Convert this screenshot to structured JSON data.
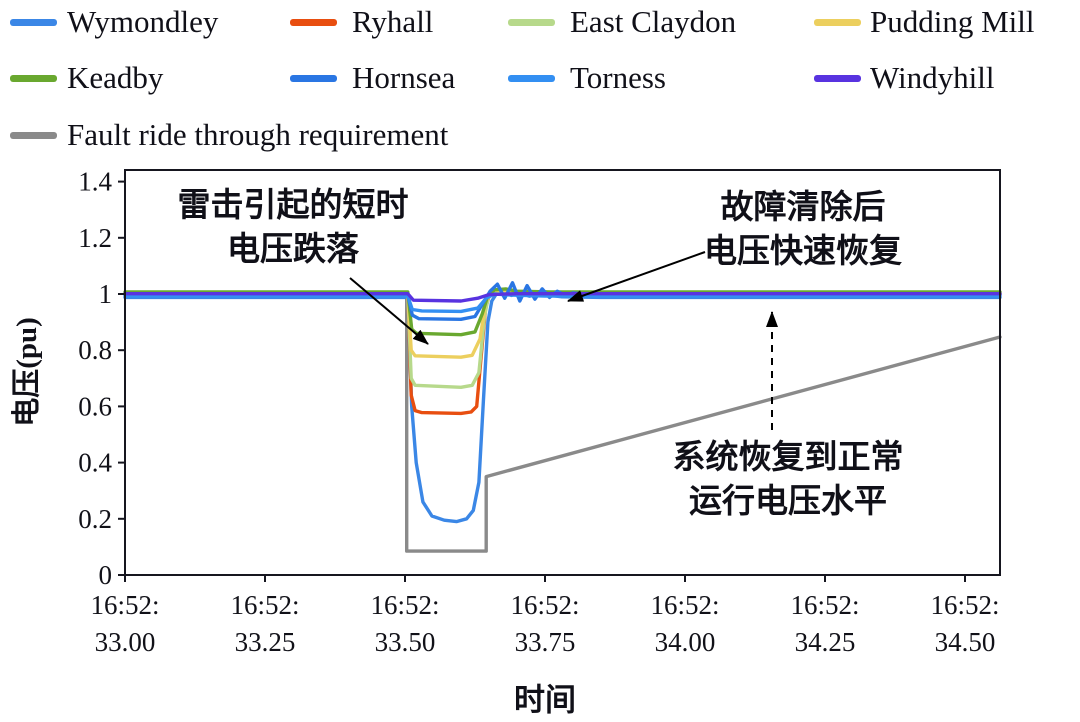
{
  "legend": {
    "items": [
      {
        "label": "Wymondley",
        "color": "#3b87e6"
      },
      {
        "label": "Ryhall",
        "color": "#e84e10"
      },
      {
        "label": "East Claydon",
        "color": "#b7d98b"
      },
      {
        "label": "Pudding Mill",
        "color": "#eccf5e"
      },
      {
        "label": "Keadby",
        "color": "#69a82f"
      },
      {
        "label": "Hornsea",
        "color": "#2a76e3"
      },
      {
        "label": "Torness",
        "color": "#338ff2"
      },
      {
        "label": "Windyhill",
        "color": "#5833e0"
      },
      {
        "label": "Fault ride through requirement",
        "color": "#8a8a8a"
      }
    ]
  },
  "axes": {
    "x_label": "时间",
    "y_label": "电压(pu)",
    "x_ticks": [
      {
        "t": 33.0,
        "label_top": "16:52:",
        "label_bottom": "33.00"
      },
      {
        "t": 33.25,
        "label_top": "16:52:",
        "label_bottom": "33.25"
      },
      {
        "t": 33.5,
        "label_top": "16:52:",
        "label_bottom": "33.50"
      },
      {
        "t": 33.75,
        "label_top": "16:52:",
        "label_bottom": "33.75"
      },
      {
        "t": 34.0,
        "label_top": "16:52:",
        "label_bottom": "34.00"
      },
      {
        "t": 34.25,
        "label_top": "16:52:",
        "label_bottom": "34.25"
      },
      {
        "t": 34.5,
        "label_top": "16:52:",
        "label_bottom": "34.50"
      }
    ],
    "y_ticks": [
      {
        "v": 0.0,
        "label": "0"
      },
      {
        "v": 0.2,
        "label": "0.2"
      },
      {
        "v": 0.4,
        "label": "0.4"
      },
      {
        "v": 0.6,
        "label": "0.6"
      },
      {
        "v": 0.8,
        "label": "0.8"
      },
      {
        "v": 1.0,
        "label": "1"
      },
      {
        "v": 1.2,
        "label": "1.2"
      },
      {
        "v": 1.4,
        "label": "1.4"
      }
    ]
  },
  "annotations": [
    {
      "lines": [
        "雷击引起的短时",
        "电压跌落"
      ]
    },
    {
      "lines": [
        "故障清除后",
        "电压快速恢复"
      ]
    },
    {
      "lines": [
        "系统恢复到正常",
        "运行电压水平"
      ]
    }
  ],
  "chart_data": {
    "type": "line",
    "title": "",
    "xlabel": "时间",
    "ylabel": "电压(pu)",
    "xlim": [
      33.0,
      34.5625
    ],
    "ylim": [
      0,
      1.4
    ],
    "grid": false,
    "legend_position": "top",
    "x_unit": "hh:mm:ss at 16:52 (seconds shown on ticks)",
    "series": [
      {
        "name": "Fault ride through requirement",
        "color": "#8a8a8a",
        "points": [
          [
            33.0,
            1.0
          ],
          [
            33.503,
            1.0
          ],
          [
            33.503,
            0.085
          ],
          [
            33.645,
            0.085
          ],
          [
            33.645,
            0.35
          ],
          [
            34.5625,
            0.847
          ]
        ]
      },
      {
        "name": "Wymondley",
        "color": "#3b87e6",
        "points": [
          [
            33.0,
            0.988
          ],
          [
            33.505,
            0.988
          ],
          [
            33.512,
            0.6
          ],
          [
            33.52,
            0.4
          ],
          [
            33.532,
            0.26
          ],
          [
            33.548,
            0.21
          ],
          [
            33.57,
            0.195
          ],
          [
            33.592,
            0.19
          ],
          [
            33.61,
            0.2
          ],
          [
            33.622,
            0.23
          ],
          [
            33.632,
            0.33
          ],
          [
            33.64,
            0.62
          ],
          [
            33.648,
            0.9
          ],
          [
            33.655,
            0.975
          ],
          [
            33.663,
            1.0
          ],
          [
            33.676,
            1.012
          ],
          [
            33.69,
            0.995
          ],
          [
            33.705,
            1.005
          ],
          [
            33.722,
            0.992
          ],
          [
            33.74,
            1.0
          ],
          [
            33.78,
            0.99
          ],
          [
            33.85,
            0.988
          ],
          [
            34.5625,
            0.988
          ]
        ]
      },
      {
        "name": "Ryhall",
        "color": "#e84e10",
        "points": [
          [
            33.0,
            1.0
          ],
          [
            33.505,
            1.0
          ],
          [
            33.511,
            0.64
          ],
          [
            33.518,
            0.585
          ],
          [
            33.53,
            0.578
          ],
          [
            33.6,
            0.575
          ],
          [
            33.618,
            0.58
          ],
          [
            33.628,
            0.6
          ],
          [
            33.636,
            0.78
          ],
          [
            33.644,
            0.95
          ],
          [
            33.652,
            1.005
          ],
          [
            33.665,
            1.01
          ],
          [
            33.69,
            1.002
          ],
          [
            33.75,
            1.0
          ],
          [
            34.5625,
            1.0
          ]
        ]
      },
      {
        "name": "East Claydon",
        "color": "#b7d98b",
        "points": [
          [
            33.0,
            1.002
          ],
          [
            33.505,
            1.002
          ],
          [
            33.511,
            0.7
          ],
          [
            33.518,
            0.675
          ],
          [
            33.6,
            0.668
          ],
          [
            33.62,
            0.675
          ],
          [
            33.632,
            0.72
          ],
          [
            33.642,
            0.92
          ],
          [
            33.65,
            1.0
          ],
          [
            33.662,
            1.012
          ],
          [
            33.685,
            1.004
          ],
          [
            33.73,
            1.002
          ],
          [
            34.5625,
            1.002
          ]
        ]
      },
      {
        "name": "Pudding Mill",
        "color": "#eccf5e",
        "points": [
          [
            33.0,
            1.004
          ],
          [
            33.505,
            1.004
          ],
          [
            33.511,
            0.8
          ],
          [
            33.518,
            0.78
          ],
          [
            33.6,
            0.775
          ],
          [
            33.62,
            0.782
          ],
          [
            33.634,
            0.84
          ],
          [
            33.644,
            0.97
          ],
          [
            33.654,
            1.01
          ],
          [
            33.672,
            1.015
          ],
          [
            33.7,
            1.006
          ],
          [
            33.75,
            1.004
          ],
          [
            34.5625,
            1.004
          ]
        ]
      },
      {
        "name": "Keadby",
        "color": "#69a82f",
        "points": [
          [
            33.0,
            1.007
          ],
          [
            33.505,
            1.007
          ],
          [
            33.512,
            0.875
          ],
          [
            33.52,
            0.86
          ],
          [
            33.6,
            0.855
          ],
          [
            33.625,
            0.865
          ],
          [
            33.638,
            0.93
          ],
          [
            33.648,
            0.995
          ],
          [
            33.66,
            1.015
          ],
          [
            33.68,
            1.018
          ],
          [
            33.7,
            1.01
          ],
          [
            33.76,
            1.007
          ],
          [
            34.5625,
            1.007
          ]
        ]
      },
      {
        "name": "Hornsea",
        "color": "#2a76e3",
        "points": [
          [
            33.0,
            0.997
          ],
          [
            33.505,
            0.997
          ],
          [
            33.513,
            0.925
          ],
          [
            33.525,
            0.912
          ],
          [
            33.6,
            0.91
          ],
          [
            33.625,
            0.92
          ],
          [
            33.64,
            0.97
          ],
          [
            33.652,
            1.01
          ],
          [
            33.665,
            1.035
          ],
          [
            33.678,
            0.985
          ],
          [
            33.692,
            1.04
          ],
          [
            33.705,
            0.975
          ],
          [
            33.718,
            1.03
          ],
          [
            33.732,
            0.982
          ],
          [
            33.745,
            1.018
          ],
          [
            33.758,
            0.988
          ],
          [
            33.772,
            1.01
          ],
          [
            33.788,
            0.992
          ],
          [
            33.8,
            1.004
          ],
          [
            33.83,
            0.997
          ],
          [
            34.5625,
            0.997
          ]
        ]
      },
      {
        "name": "Torness",
        "color": "#338ff2",
        "points": [
          [
            33.0,
            0.993
          ],
          [
            33.505,
            0.993
          ],
          [
            33.513,
            0.945
          ],
          [
            33.53,
            0.94
          ],
          [
            33.6,
            0.938
          ],
          [
            33.63,
            0.95
          ],
          [
            33.645,
            0.985
          ],
          [
            33.66,
            1.0
          ],
          [
            33.69,
            0.996
          ],
          [
            33.75,
            0.993
          ],
          [
            34.5625,
            0.993
          ]
        ]
      },
      {
        "name": "Windyhill",
        "color": "#5833e0",
        "points": [
          [
            33.0,
            1.001
          ],
          [
            33.505,
            1.001
          ],
          [
            33.515,
            0.978
          ],
          [
            33.6,
            0.975
          ],
          [
            33.63,
            0.985
          ],
          [
            33.65,
            0.998
          ],
          [
            33.7,
            1.001
          ],
          [
            34.5625,
            1.001
          ]
        ]
      }
    ]
  }
}
